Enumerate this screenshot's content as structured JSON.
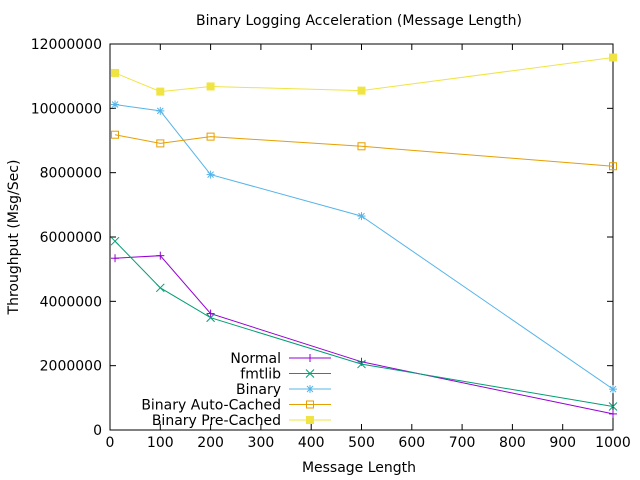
{
  "chart_data": {
    "type": "line",
    "title": "Binary Logging Acceleration (Message Length)",
    "xlabel": "Message Length",
    "ylabel": "Throughput (Msg/Sec)",
    "xlim": [
      0,
      1000
    ],
    "ylim": [
      0,
      12000000
    ],
    "xticks": [
      0,
      100,
      200,
      300,
      400,
      500,
      600,
      700,
      800,
      900,
      1000
    ],
    "yticks": [
      0,
      2000000,
      4000000,
      6000000,
      8000000,
      10000000,
      12000000
    ],
    "grid": false,
    "legend_position": "bottom-center",
    "series": [
      {
        "name": "Normal",
        "color": "#9400d3",
        "marker": "plus",
        "x": [
          10,
          100,
          200,
          500,
          1000
        ],
        "y": [
          5340000,
          5420000,
          3620000,
          2120000,
          500000
        ]
      },
      {
        "name": "fmtlib",
        "color": "#009e73",
        "marker": "cross",
        "x": [
          10,
          100,
          200,
          500,
          1000
        ],
        "y": [
          5870000,
          4420000,
          3490000,
          2050000,
          730000
        ]
      },
      {
        "name": "Binary",
        "color": "#56b4e9",
        "marker": "star",
        "x": [
          10,
          100,
          200,
          500,
          1000
        ],
        "y": [
          10120000,
          9920000,
          7940000,
          6650000,
          1270000
        ]
      },
      {
        "name": "Binary Auto-Cached",
        "color": "#e69f00",
        "marker": "open-square",
        "x": [
          10,
          100,
          200,
          500,
          1000
        ],
        "y": [
          9180000,
          8910000,
          9120000,
          8820000,
          8200000
        ]
      },
      {
        "name": "Binary Pre-Cached",
        "color": "#f0e442",
        "marker": "filled-square",
        "x": [
          10,
          100,
          200,
          500,
          1000
        ],
        "y": [
          11100000,
          10520000,
          10680000,
          10550000,
          11580000
        ]
      }
    ]
  }
}
